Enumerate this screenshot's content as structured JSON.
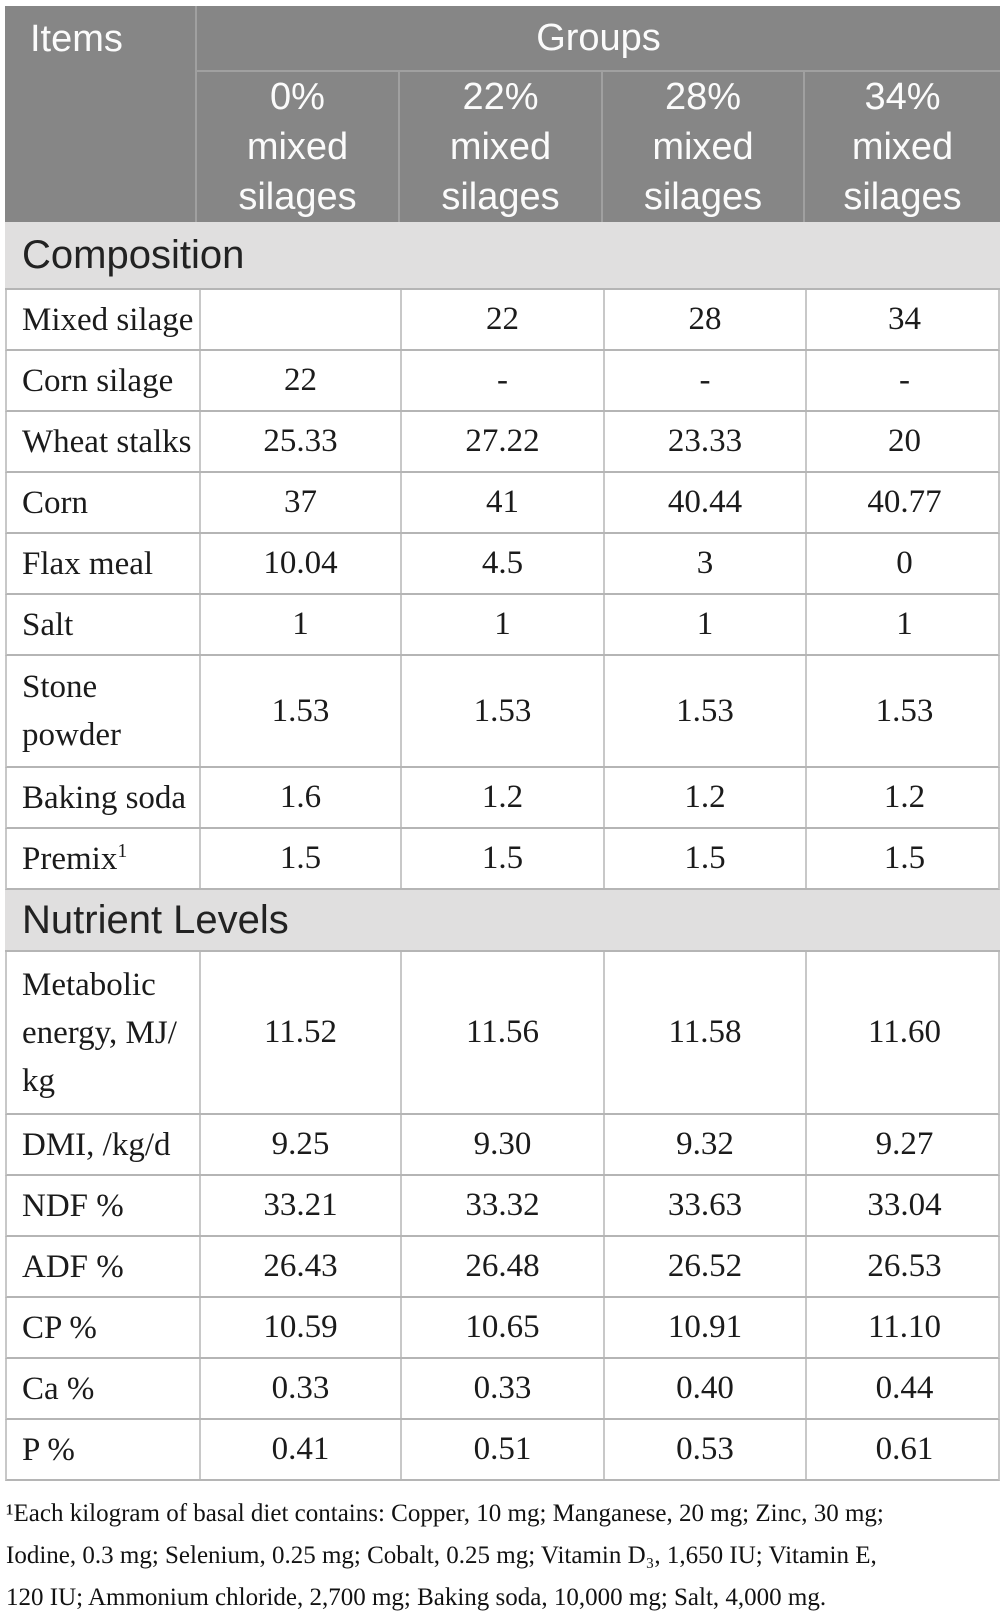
{
  "header": {
    "items": "Items",
    "groups": "Groups",
    "columns": [
      {
        "lines": [
          "0%",
          "mixed",
          "silages"
        ]
      },
      {
        "lines": [
          "22%",
          "mixed",
          "silages"
        ]
      },
      {
        "lines": [
          "28%",
          "mixed",
          "silages"
        ]
      },
      {
        "lines": [
          "34%",
          "mixed",
          "silages"
        ]
      }
    ]
  },
  "sections": [
    {
      "title": "Composition",
      "rows": [
        {
          "label_lines": [
            "Mixed silage"
          ],
          "values": [
            "",
            "22",
            "28",
            "34"
          ]
        },
        {
          "label_lines": [
            "Corn silage"
          ],
          "values": [
            "22",
            "-",
            "-",
            "-"
          ]
        },
        {
          "label_lines": [
            "Wheat stalks"
          ],
          "values": [
            "25.33",
            "27.22",
            "23.33",
            "20"
          ]
        },
        {
          "label_lines": [
            "Corn"
          ],
          "values": [
            "37",
            "41",
            "40.44",
            "40.77"
          ]
        },
        {
          "label_lines": [
            "Flax meal"
          ],
          "values": [
            "10.04",
            "4.5",
            "3",
            "0"
          ]
        },
        {
          "label_lines": [
            "Salt"
          ],
          "values": [
            "1",
            "1",
            "1",
            "1"
          ]
        },
        {
          "label_lines": [
            "Stone",
            "powder"
          ],
          "values": [
            "1.53",
            "1.53",
            "1.53",
            "1.53"
          ]
        },
        {
          "label_lines": [
            "Baking soda"
          ],
          "values": [
            "1.6",
            "1.2",
            "1.2",
            "1.2"
          ]
        },
        {
          "label_lines": [
            "Premix"
          ],
          "sup": "1",
          "values": [
            "1.5",
            "1.5",
            "1.5",
            "1.5"
          ]
        }
      ]
    },
    {
      "title": "Nutrient Levels",
      "rows": [
        {
          "label_lines": [
            "Metabolic",
            "energy, MJ/",
            "kg"
          ],
          "values": [
            "11.52",
            "11.56",
            "11.58",
            "11.60"
          ]
        },
        {
          "label_lines": [
            "DMI, /kg/d"
          ],
          "values": [
            "9.25",
            "9.30",
            "9.32",
            "9.27"
          ]
        },
        {
          "label_lines": [
            "NDF %"
          ],
          "values": [
            "33.21",
            "33.32",
            "33.63",
            "33.04"
          ]
        },
        {
          "label_lines": [
            "ADF %"
          ],
          "values": [
            "26.43",
            "26.48",
            "26.52",
            "26.53"
          ]
        },
        {
          "label_lines": [
            "CP %"
          ],
          "values": [
            "10.59",
            "10.65",
            "10.91",
            "11.10"
          ]
        },
        {
          "label_lines": [
            "Ca %"
          ],
          "values": [
            "0.33",
            "0.33",
            "0.40",
            "0.44"
          ]
        },
        {
          "label_lines": [
            "P %"
          ],
          "values": [
            "0.41",
            "0.51",
            "0.53",
            "0.61"
          ]
        }
      ]
    }
  ],
  "footnote_lines": [
    "¹Each kilogram of basal diet contains: Copper, 10 mg; Manganese, 20 mg; Zinc, 30 mg;",
    "Iodine, 0.3 mg; Selenium, 0.25 mg; Cobalt, 0.25 mg; Vitamin D₃, 1,650 IU; Vitamin E,",
    "120 IU; Ammonium chloride, 2,700 mg; Baking soda, 10,000 mg; Salt, 4,000 mg."
  ],
  "colors": {
    "header_bg": "#868686",
    "header_text": "#fbfbfb",
    "header_line": "#a0a0a0",
    "section_bg": "#e0dfdf",
    "row_line": "#b5b5b5",
    "grid_line": "#c8c8c8",
    "body_text": "#1b1b1b"
  }
}
